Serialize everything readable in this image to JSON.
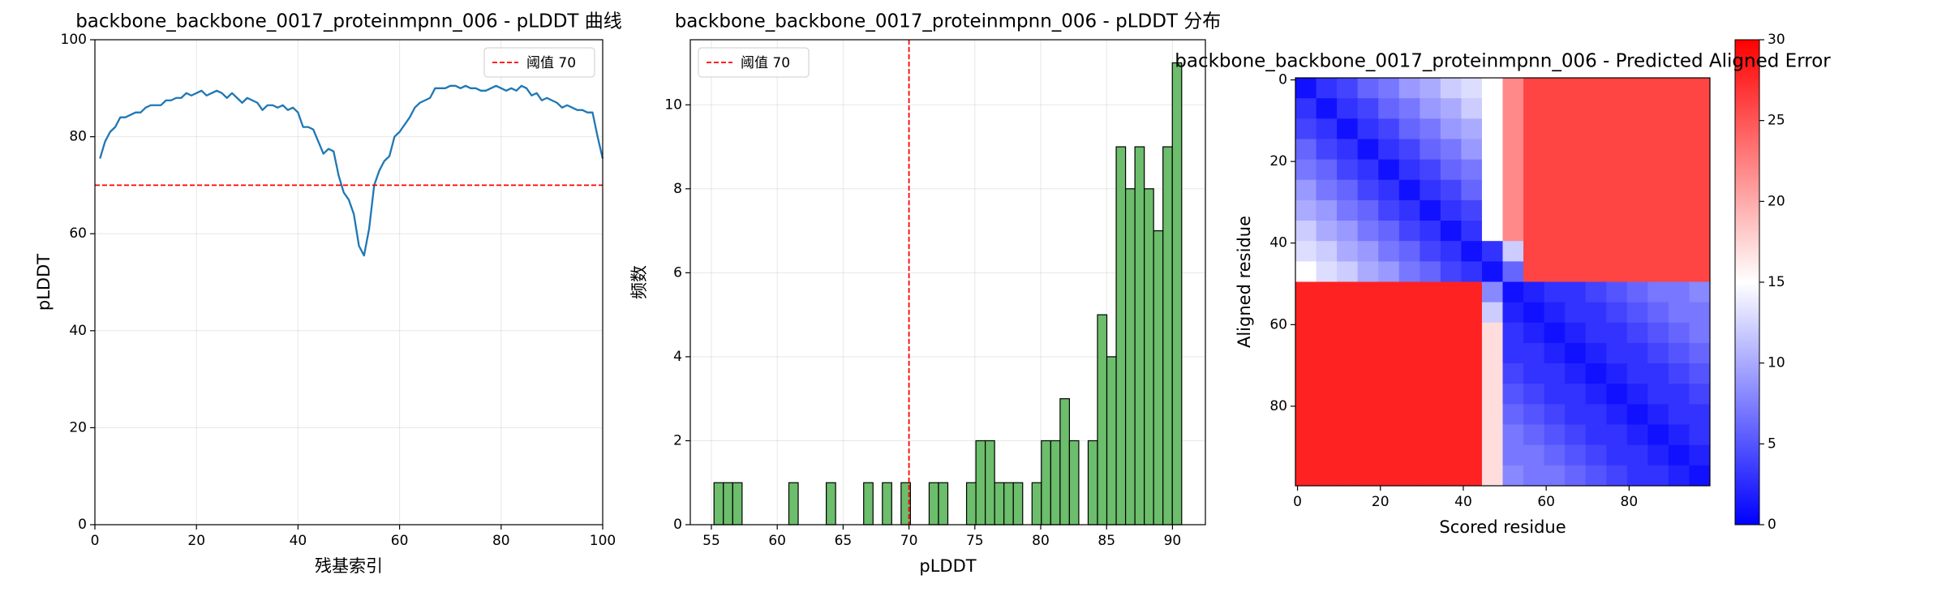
{
  "chart_data": [
    {
      "type": "line",
      "title": "backbone_backbone_0017_proteinmpnn_006 - pLDDT 曲线",
      "xlabel": "残基索引",
      "ylabel": "pLDDT",
      "x": [
        1,
        2,
        3,
        4,
        5,
        6,
        7,
        8,
        9,
        10,
        11,
        12,
        13,
        14,
        15,
        16,
        17,
        18,
        19,
        20,
        21,
        22,
        23,
        24,
        25,
        26,
        27,
        28,
        29,
        30,
        31,
        32,
        33,
        34,
        35,
        36,
        37,
        38,
        39,
        40,
        41,
        42,
        43,
        44,
        45,
        46,
        47,
        48,
        49,
        50,
        51,
        52,
        53,
        54,
        55,
        56,
        57,
        58,
        59,
        60,
        61,
        62,
        63,
        64,
        65,
        66,
        67,
        68,
        69,
        70,
        71,
        72,
        73,
        74,
        75,
        76,
        77,
        78,
        79,
        80,
        81,
        82,
        83,
        84,
        85,
        86,
        87,
        88,
        89,
        90,
        91,
        92,
        93,
        94,
        95,
        96,
        97,
        98,
        99,
        100
      ],
      "series": [
        {
          "color": "#1f77b4",
          "values": [
            75.5,
            79,
            81,
            82,
            84,
            84,
            84.5,
            85,
            85,
            86,
            86.5,
            86.5,
            86.5,
            87.5,
            87.5,
            88,
            88,
            89,
            88.5,
            89,
            89.5,
            88.5,
            89,
            89.5,
            89,
            88,
            89,
            88,
            87,
            88,
            87.5,
            87,
            85.5,
            86.5,
            86.5,
            86,
            86.5,
            85.5,
            86,
            85,
            82,
            82,
            81.5,
            79,
            76.5,
            77.5,
            77,
            72,
            68.5,
            67,
            64,
            57.5,
            55.5,
            61,
            70,
            73,
            75,
            76,
            80,
            81,
            82.5,
            84,
            86,
            87,
            87.5,
            88,
            90,
            90,
            90,
            90.5,
            90.5,
            90,
            90.5,
            90,
            90,
            89.5,
            89.5,
            90,
            90.5,
            90,
            89.5,
            90,
            89.5,
            90.5,
            90,
            88.5,
            89,
            87.5,
            88,
            87.5,
            87,
            86,
            86.5,
            86,
            85.5,
            85.5,
            85,
            85,
            80,
            75.5
          ]
        }
      ],
      "xlim": [
        0,
        100
      ],
      "ylim": [
        0,
        100
      ],
      "xticks": [
        0,
        20,
        40,
        60,
        80,
        100
      ],
      "yticks": [
        0,
        20,
        40,
        60,
        80,
        100
      ],
      "grid": true,
      "hline": {
        "value": 70,
        "label": "阈值 70",
        "color": "#ff0000"
      },
      "legend": "upper right"
    },
    {
      "type": "histogram",
      "title": "backbone_backbone_0017_proteinmpnn_006 - pLDDT 分布",
      "xlabel": "pLDDT",
      "ylabel": "频数",
      "bins": [
        55.2,
        55.91,
        56.62,
        57.33,
        58.04,
        58.75,
        59.46,
        60.17,
        60.88,
        61.59,
        62.3,
        63.01,
        63.72,
        64.43,
        65.14,
        65.85,
        66.56,
        67.27,
        67.98,
        68.69,
        69.4,
        70.11,
        70.82,
        71.53,
        72.24,
        72.95,
        73.66,
        74.37,
        75.08,
        75.79,
        76.5,
        77.21,
        77.92,
        78.63,
        79.34,
        80.05,
        80.76,
        81.47,
        82.18,
        82.89,
        83.6,
        84.31,
        85.02,
        85.73,
        86.44,
        87.15,
        87.86,
        88.57,
        89.28,
        89.99,
        90.7
      ],
      "values": [
        1,
        1,
        1,
        0,
        0,
        0,
        0,
        0,
        1,
        0,
        0,
        0,
        1,
        0,
        0,
        0,
        1,
        0,
        1,
        0,
        1,
        0,
        0,
        1,
        1,
        0,
        0,
        1,
        2,
        2,
        1,
        1,
        1,
        0,
        1,
        2,
        2,
        3,
        2,
        0,
        2,
        5,
        4,
        9,
        8,
        9,
        8,
        7,
        9,
        11
      ],
      "color": "#6cbd6c",
      "edgecolor": "#000000",
      "xlim": [
        53.4,
        92.5
      ],
      "ylim": [
        0,
        11.55
      ],
      "xticks": [
        55,
        60,
        65,
        70,
        75,
        80,
        85,
        90
      ],
      "yticks": [
        0,
        2,
        4,
        6,
        8,
        10
      ],
      "grid": true,
      "vline": {
        "value": 70,
        "label": "阈值 70",
        "color": "#ff0000"
      },
      "legend": "upper left"
    },
    {
      "type": "heatmap",
      "title": "backbone_backbone_0017_proteinmpnn_006 - Predicted Aligned Error",
      "xlabel": "Scored residue",
      "ylabel": "Aligned residue",
      "x": [
        0,
        5,
        10,
        15,
        20,
        25,
        30,
        35,
        40,
        45,
        50,
        55,
        60,
        65,
        70,
        75,
        80,
        85,
        90,
        95
      ],
      "y": [
        0,
        5,
        10,
        15,
        20,
        25,
        30,
        35,
        40,
        45,
        50,
        55,
        60,
        65,
        70,
        75,
        80,
        85,
        90,
        95
      ],
      "values": [
        [
          1,
          3,
          4,
          6,
          7,
          9,
          10,
          12,
          13,
          15,
          22,
          26,
          26,
          26,
          26,
          26,
          26,
          26,
          26,
          26
        ],
        [
          3,
          1,
          3,
          4,
          6,
          7,
          9,
          10,
          12,
          15,
          22,
          26,
          26,
          26,
          26,
          26,
          26,
          26,
          26,
          26
        ],
        [
          4,
          3,
          1,
          3,
          4,
          6,
          7,
          9,
          10,
          15,
          22,
          26,
          26,
          26,
          26,
          26,
          26,
          26,
          26,
          26
        ],
        [
          6,
          4,
          3,
          1,
          3,
          4,
          6,
          7,
          9,
          15,
          22,
          26,
          26,
          26,
          26,
          26,
          26,
          26,
          26,
          26
        ],
        [
          7,
          6,
          4,
          3,
          1,
          3,
          4,
          6,
          7,
          15,
          22,
          26,
          26,
          26,
          26,
          26,
          26,
          26,
          26,
          26
        ],
        [
          9,
          7,
          6,
          4,
          3,
          1,
          3,
          4,
          6,
          15,
          22,
          26,
          26,
          26,
          26,
          26,
          26,
          26,
          26,
          26
        ],
        [
          10,
          9,
          7,
          6,
          4,
          3,
          1,
          3,
          4,
          15,
          22,
          26,
          26,
          26,
          26,
          26,
          26,
          26,
          26,
          26
        ],
        [
          12,
          10,
          9,
          7,
          6,
          4,
          3,
          1,
          3,
          15,
          22,
          26,
          26,
          26,
          26,
          26,
          26,
          26,
          26,
          26
        ],
        [
          13,
          12,
          10,
          9,
          7,
          6,
          4,
          3,
          1,
          3,
          12,
          26,
          26,
          26,
          26,
          26,
          26,
          26,
          26,
          26
        ],
        [
          15,
          13,
          12,
          10,
          9,
          7,
          6,
          4,
          3,
          1,
          6,
          26,
          26,
          26,
          26,
          26,
          26,
          26,
          26,
          26
        ],
        [
          28,
          28,
          28,
          28,
          28,
          28,
          28,
          28,
          28,
          8,
          1,
          2,
          3,
          3,
          4,
          5,
          6,
          7,
          7,
          8
        ],
        [
          28,
          28,
          28,
          28,
          28,
          28,
          28,
          28,
          28,
          12,
          2,
          1,
          2,
          3,
          3,
          4,
          5,
          6,
          7,
          7
        ],
        [
          28,
          28,
          28,
          28,
          28,
          28,
          28,
          28,
          28,
          17,
          3,
          2,
          1,
          2,
          3,
          3,
          4,
          5,
          6,
          7
        ],
        [
          28,
          28,
          28,
          28,
          28,
          28,
          28,
          28,
          28,
          17,
          3,
          3,
          2,
          1,
          2,
          3,
          3,
          4,
          5,
          6
        ],
        [
          28,
          28,
          28,
          28,
          28,
          28,
          28,
          28,
          28,
          17,
          4,
          3,
          3,
          2,
          1,
          2,
          3,
          3,
          4,
          5
        ],
        [
          28,
          28,
          28,
          28,
          28,
          28,
          28,
          28,
          28,
          17,
          5,
          4,
          3,
          3,
          2,
          1,
          2,
          3,
          3,
          4
        ],
        [
          28,
          28,
          28,
          28,
          28,
          28,
          28,
          28,
          28,
          17,
          6,
          5,
          4,
          3,
          3,
          2,
          1,
          2,
          3,
          3
        ],
        [
          28,
          28,
          28,
          28,
          28,
          28,
          28,
          28,
          28,
          17,
          7,
          6,
          5,
          4,
          3,
          3,
          2,
          1,
          2,
          3
        ],
        [
          28,
          28,
          28,
          28,
          28,
          28,
          28,
          28,
          28,
          17,
          7,
          7,
          6,
          5,
          4,
          3,
          3,
          2,
          1,
          2
        ],
        [
          28,
          28,
          28,
          28,
          28,
          28,
          28,
          28,
          28,
          17,
          8,
          7,
          7,
          6,
          5,
          4,
          3,
          3,
          2,
          1
        ]
      ],
      "xlim": [
        -0.5,
        99.5
      ],
      "ylim": [
        99.5,
        -0.5
      ],
      "xticks": [
        0,
        20,
        40,
        60,
        80
      ],
      "yticks": [
        0,
        20,
        40,
        60,
        80
      ],
      "colormap": "bwr",
      "clim": [
        0,
        30
      ],
      "colorbar_ticks": [
        0,
        5,
        10,
        15,
        20,
        25,
        30
      ]
    }
  ]
}
